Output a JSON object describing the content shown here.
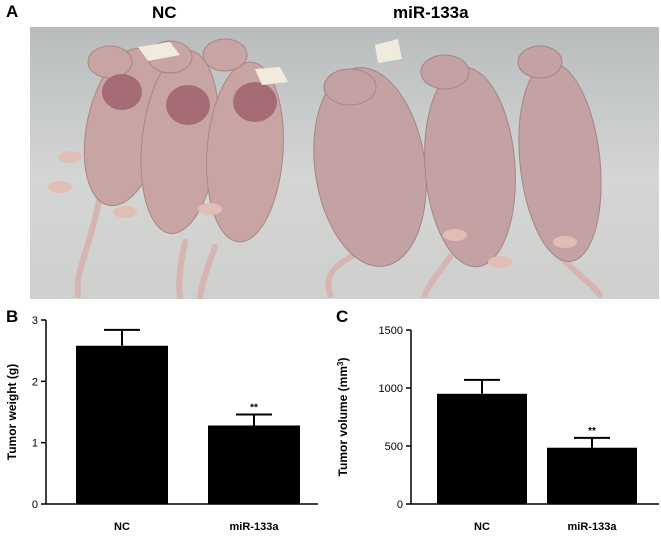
{
  "figure": {
    "panel_a": {
      "letter": "A",
      "group_left": "NC",
      "group_right": "miR-133a"
    },
    "panel_b": {
      "letter": "B"
    },
    "panel_c": {
      "letter": "C"
    }
  },
  "colors": {
    "bar": "#000000",
    "mouse_skin": "#c9a6a4",
    "tumor": "#a86f78",
    "background": "#c8cacb"
  },
  "chart_data": [
    {
      "type": "bar",
      "categories": [
        "NC",
        "miR-133a"
      ],
      "values": [
        2.58,
        1.28
      ],
      "errors": [
        0.26,
        0.18
      ],
      "significance": [
        "",
        "**"
      ],
      "xlabel": "",
      "ylabel": "Tumor weight (g)",
      "ylim": [
        0,
        3
      ],
      "yticks": [
        "0",
        "1",
        "2",
        "3"
      ],
      "grid": false
    },
    {
      "type": "bar",
      "categories": [
        "NC",
        "miR-133a"
      ],
      "values": [
        950,
        485
      ],
      "errors": [
        120,
        85
      ],
      "significance": [
        "",
        "**"
      ],
      "xlabel": "",
      "ylabel_main": "Tumor volume (mm",
      "ylabel_sup": "3",
      "ylabel_end": ")",
      "ylim": [
        0,
        1500
      ],
      "yticks": [
        "0",
        "500",
        "1000",
        "1500"
      ],
      "grid": false
    }
  ]
}
